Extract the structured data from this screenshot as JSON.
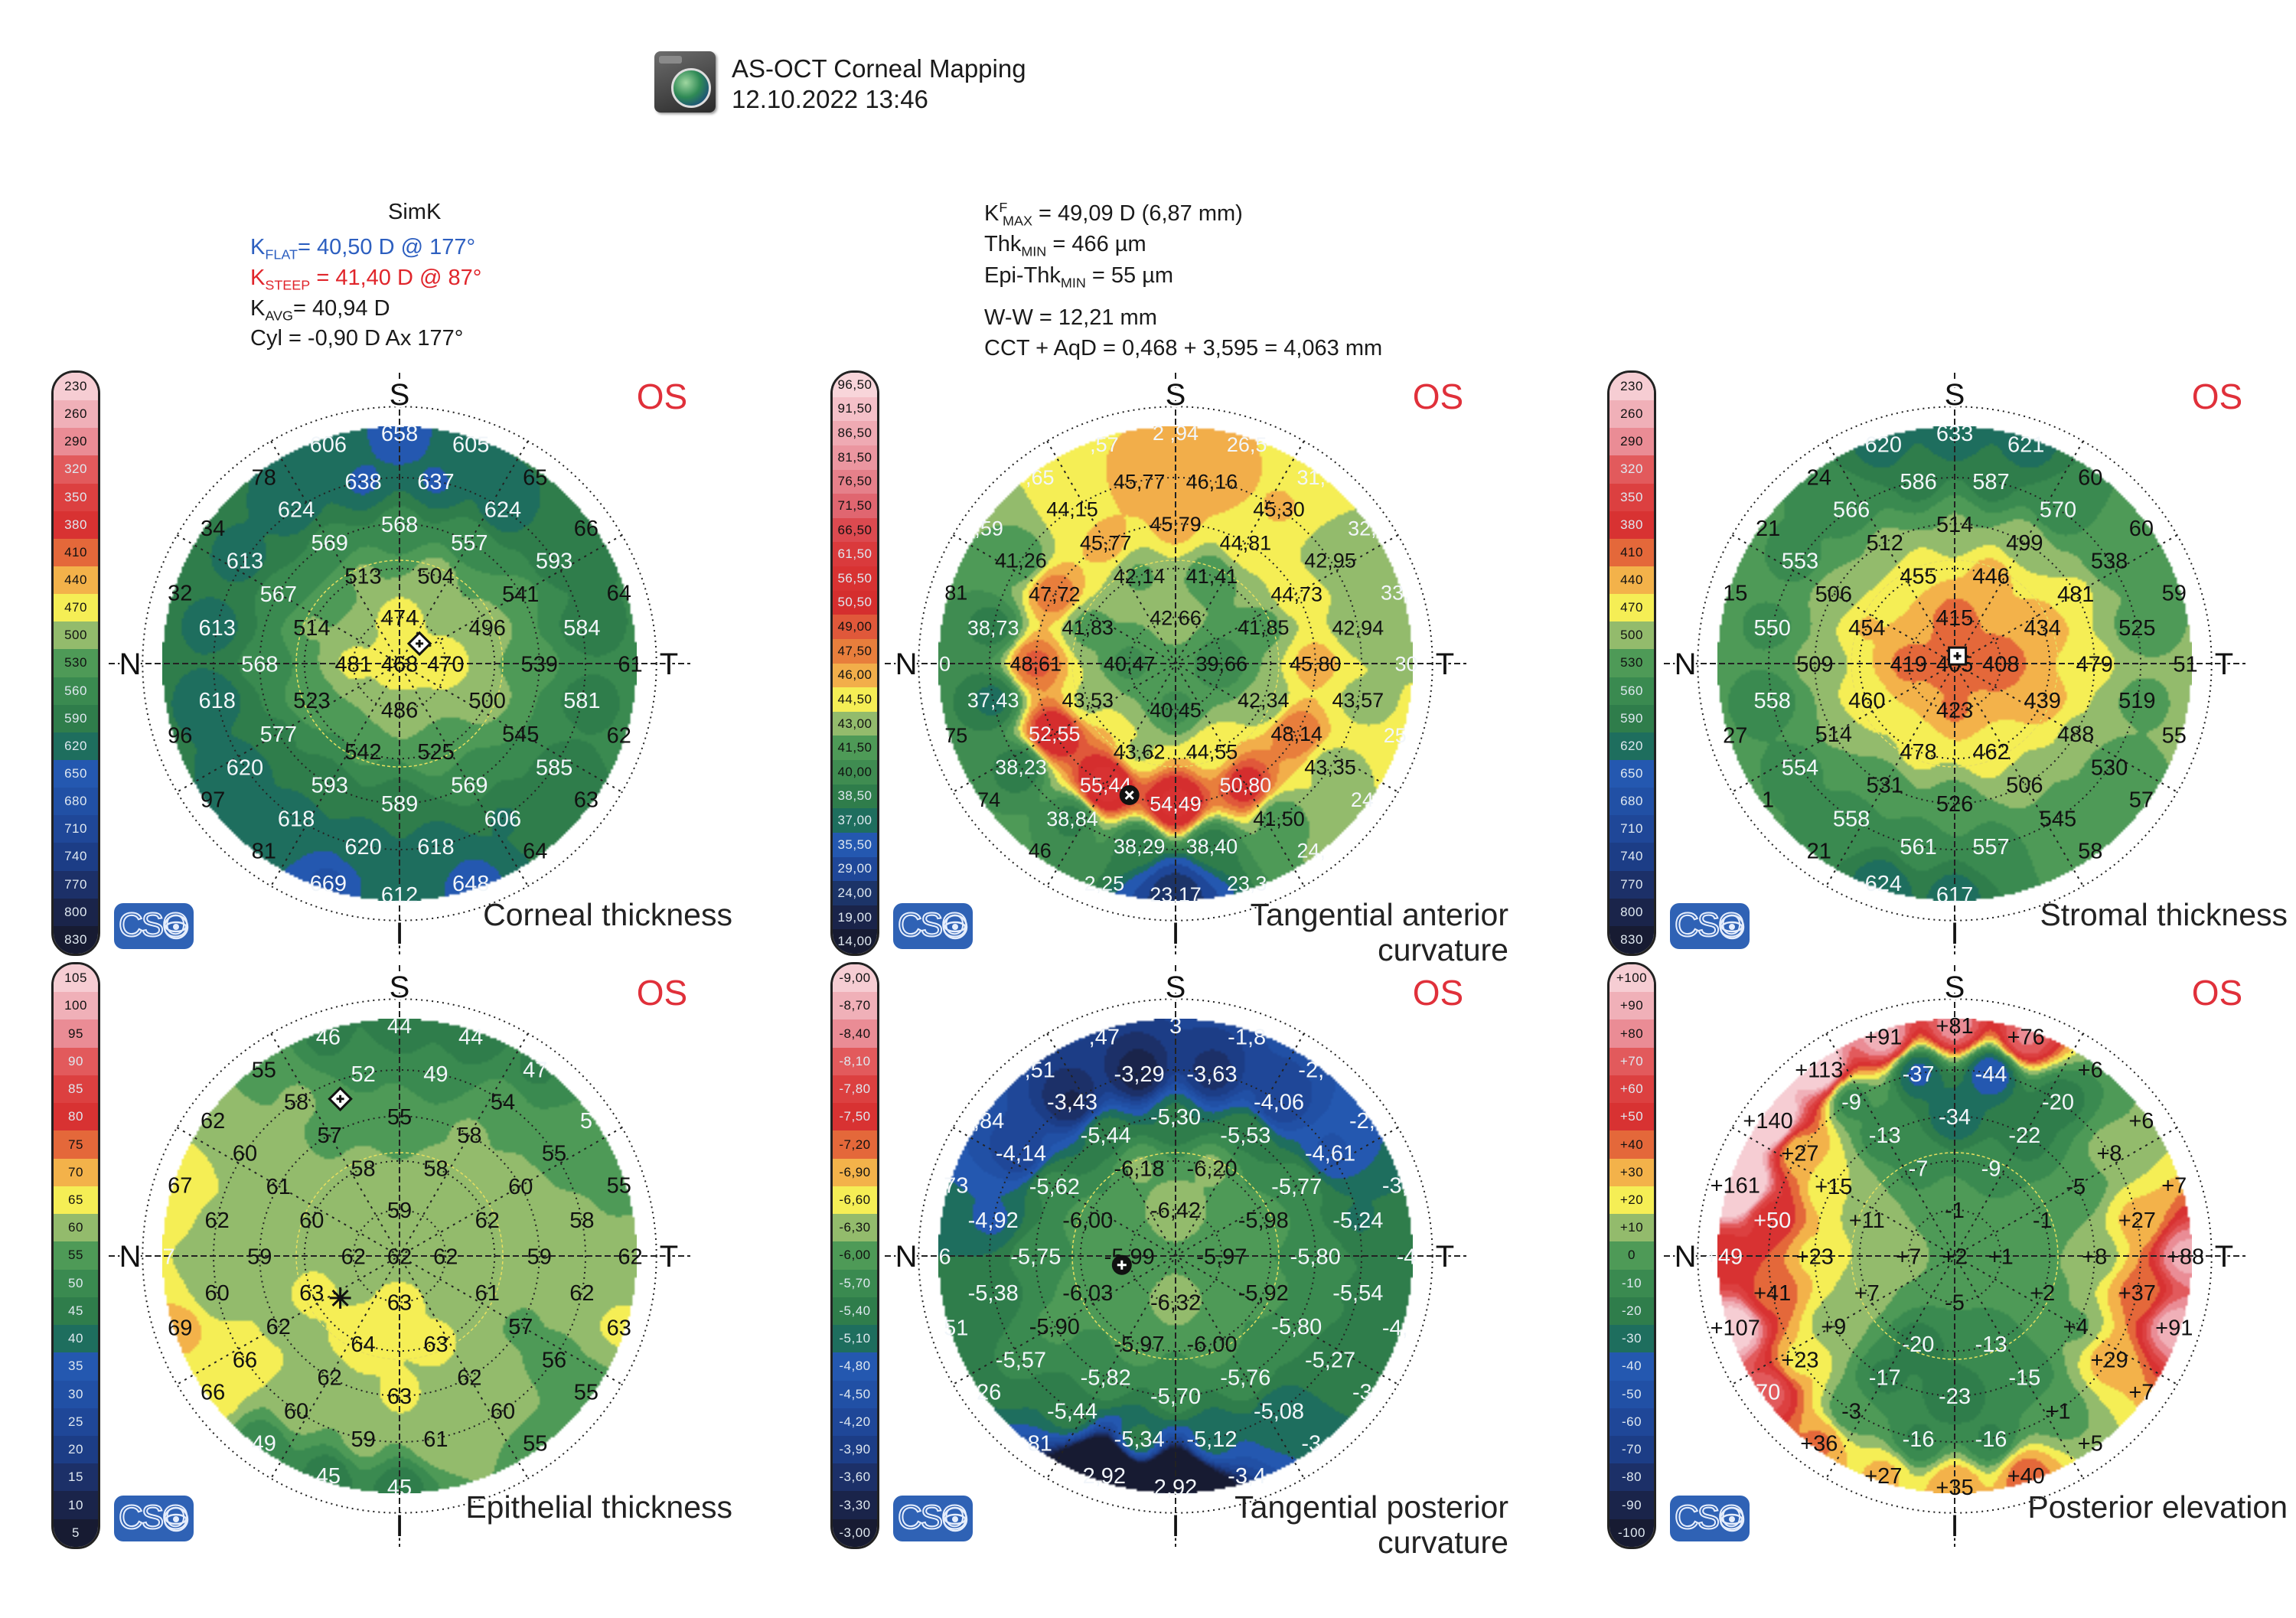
{
  "header": {
    "title": "AS-OCT Corneal Mapping",
    "datetime": "12.10.2022 13:46",
    "app_icon": "globe-monitor-icon"
  },
  "simk": {
    "title": "SimK",
    "kflat": {
      "base": "K",
      "sub": "FLAT",
      "text": "= 40,50 D @ 177°"
    },
    "ksteep": {
      "base": "K",
      "sub": "STEEP",
      "text": " = 41,40 D @ 87°"
    },
    "kavg": {
      "base": "K",
      "sub": "AVG",
      "text": "= 40,94 D"
    },
    "cyl": "Cyl = -0,90 D Ax 177°"
  },
  "summary": {
    "kmax": {
      "base": "K",
      "sup": "F",
      "sub": "MAX",
      "text": " = 49,09 D (6,87 mm)"
    },
    "thkmin": {
      "base": "Thk",
      "sub": "MIN",
      "text": " = 466 µm"
    },
    "epithkmin": {
      "base": "Epi-Thk",
      "sub": "MIN",
      "text": " = 55 µm"
    },
    "ww": "W-W = 12,21 mm",
    "cct": "CCT + AqD = 0,468 + 3,595 = 4,063 mm"
  },
  "colors": {
    "kflat": "#2d5fc0",
    "ksteep": "#e0252b",
    "eye_label": "#e0303a",
    "logo": "#2f62b5"
  },
  "logo_text": "CSO",
  "scales": {
    "thickness": {
      "labels": [
        "230",
        "260",
        "290",
        "320",
        "350",
        "380",
        "410",
        "440",
        "470",
        "500",
        "530",
        "560",
        "590",
        "620",
        "650",
        "680",
        "710",
        "740",
        "770",
        "800",
        "830"
      ]
    },
    "tangential_anterior": {
      "labels": [
        "96,50",
        "91,50",
        "86,50",
        "81,50",
        "76,50",
        "71,50",
        "66,50",
        "61,50",
        "56,50",
        "50,50",
        "49,00",
        "47,50",
        "46,00",
        "44,50",
        "43,00",
        "41,50",
        "40,00",
        "38,50",
        "37,00",
        "35,50",
        "29,00",
        "24,00",
        "19,00",
        "14,00"
      ],
      "colors": [
        "#f8d5da",
        "#f4c0c8",
        "#efaab3",
        "#eb96a0",
        "#e5808a",
        "#e06670",
        "#dc4a50",
        "#da3a3c",
        "#d83232",
        "#d52e2e",
        "#e0583a",
        "#e87e3c",
        "#f2ae4a",
        "#f5ee55",
        "#93bb6c",
        "#4e9a57",
        "#3f8c51",
        "#2f7d4b",
        "#1e6e5e",
        "#2458b0",
        "#1f4798",
        "#1c3468",
        "#1a244a",
        "#171b32"
      ],
      "light_labels": [
        7,
        8,
        9,
        17,
        18,
        19,
        20,
        21,
        22,
        23
      ]
    },
    "epithelial": {
      "labels": [
        "105",
        "100",
        "95",
        "90",
        "85",
        "80",
        "75",
        "70",
        "65",
        "60",
        "55",
        "50",
        "45",
        "40",
        "35",
        "30",
        "25",
        "20",
        "15",
        "10",
        "5"
      ]
    },
    "tangential_posterior": {
      "labels": [
        "-9,00",
        "-8,70",
        "-8,40",
        "-8,10",
        "-7,80",
        "-7,50",
        "-7,20",
        "-6,90",
        "-6,60",
        "-6,30",
        "-6,00",
        "-5,70",
        "-5,40",
        "-5,10",
        "-4,80",
        "-4,50",
        "-4,20",
        "-3,90",
        "-3,60",
        "-3,30",
        "-3,00"
      ]
    },
    "elevation": {
      "labels": [
        "+100",
        "+90",
        "+80",
        "+70",
        "+60",
        "+50",
        "+40",
        "+30",
        "+20",
        "+10",
        "0",
        "-10",
        "-20",
        "-30",
        "-40",
        "-50",
        "-60",
        "-70",
        "-80",
        "-90",
        "-100"
      ]
    },
    "standard_colors": [
      "#f6cdd3",
      "#f0b0b8",
      "#ea8c95",
      "#e25a5c",
      "#dc4040",
      "#d83232",
      "#e4683a",
      "#f3b24a",
      "#f5ee55",
      "#93bb6c",
      "#4e9a57",
      "#3a8a50",
      "#2f7d4b",
      "#1e6e5e",
      "#2458b0",
      "#2150a5",
      "#1f4798",
      "#1c3d86",
      "#1c3068",
      "#1a244a",
      "#171b32"
    ],
    "standard_light_labels": [
      3,
      4,
      5,
      11,
      12,
      13,
      14,
      15,
      16,
      17,
      18,
      19,
      20
    ]
  },
  "orientation": {
    "superior": "S",
    "inferior": "I",
    "nasal": "N",
    "temporal": "T"
  },
  "maps": [
    {
      "title": "Corneal thickness",
      "eye": "OS",
      "scale": "thickness",
      "marker": "diamond-icon",
      "values": {
        "center": "468",
        "r1": [
          "470",
          "474",
          "481",
          "486"
        ],
        "r2": [
          "496",
          "504",
          "513",
          "514",
          "523",
          "542",
          "525",
          "500"
        ],
        "r3": [
          "539",
          "541",
          "557",
          "568",
          "569",
          "567",
          "568",
          "577",
          "593",
          "589",
          "569",
          "545"
        ],
        "r4": [
          "584",
          "593",
          "624",
          "637",
          "638",
          "624",
          "613",
          "613",
          "618",
          "620",
          "618",
          "620",
          "618",
          "606",
          "585",
          "581"
        ],
        "r5": [
          "61",
          "64",
          "66",
          "65",
          "605",
          "658",
          "606",
          "78",
          "34",
          "32",
          "",
          "96",
          "97",
          "81",
          "669",
          "612",
          "648",
          "64",
          "63",
          "62"
        ]
      }
    },
    {
      "title": "Tangential anterior curvature",
      "eye": "OS",
      "scale": "tangential_anterior",
      "marker": "x-circle-icon",
      "values": {
        "center": "",
        "r1": [
          "39,66",
          "42,66",
          "40,47",
          "40,45"
        ],
        "r2": [
          "41,85",
          "41,41",
          "42,14",
          "41,83",
          "43,53",
          "43,62",
          "44,55",
          "42,34"
        ],
        "r3": [
          "45,80",
          "44,73",
          "44,81",
          "45,79",
          "45,77",
          "47,72",
          "48,61",
          "52,55",
          "55,44",
          "54,49",
          "50,80",
          "48,14"
        ],
        "r4": [
          "42,94",
          "42,95",
          "45,30",
          "46,16",
          "45,77",
          "44,15",
          "41,26",
          "38,73",
          "37,43",
          "38,23",
          "38,84",
          "38,29",
          "38,40",
          "41,50",
          "43,35",
          "43,57"
        ],
        "r5": [
          "30",
          "33,",
          "32,",
          "31,",
          "26,5",
          "2 ,94",
          ",57",
          ",65",
          ",59",
          "81",
          "0",
          "75",
          "74",
          "46",
          "2,25",
          "23,17",
          "23,3",
          "24,",
          "24",
          "25"
        ]
      }
    },
    {
      "title": "Stromal thickness",
      "eye": "OS",
      "scale": "thickness",
      "marker": "square-icon",
      "values": {
        "center": "405",
        "r1": [
          "408",
          "415",
          "419",
          "423"
        ],
        "r2": [
          "434",
          "446",
          "455",
          "454",
          "460",
          "478",
          "462",
          "439"
        ],
        "r3": [
          "479",
          "481",
          "499",
          "514",
          "512",
          "506",
          "509",
          "514",
          "531",
          "526",
          "506",
          "488"
        ],
        "r4": [
          "525",
          "538",
          "570",
          "587",
          "586",
          "566",
          "553",
          "550",
          "558",
          "554",
          "558",
          "561",
          "557",
          "545",
          "530",
          "519"
        ],
        "r5": [
          "51",
          "59",
          "60",
          "60",
          "621",
          "633",
          "620",
          "24",
          "21",
          "15",
          "",
          "27",
          "1",
          "21",
          "624",
          "617",
          "",
          "58",
          "57",
          "55"
        ]
      }
    },
    {
      "title": "Epithelial thickness",
      "eye": "OS",
      "scale": "epithelial",
      "marker": "diamond-icon",
      "marker2": "asterisk-icon",
      "values": {
        "center": "62",
        "r1": [
          "62",
          "59",
          "62",
          "63"
        ],
        "r2": [
          "62",
          "58",
          "58",
          "60",
          "63",
          "64",
          "63",
          "61"
        ],
        "r3": [
          "59",
          "60",
          "58",
          "55",
          "57",
          "61",
          "59",
          "62",
          "62",
          "63",
          "62",
          "57"
        ],
        "r4": [
          "58",
          "55",
          "54",
          "49",
          "52",
          "58",
          "60",
          "62",
          "60",
          "66",
          "60",
          "59",
          "61",
          "60",
          "56",
          "62"
        ],
        "r5": [
          "62",
          "55",
          "5",
          "47",
          "44",
          "44",
          "46",
          "55",
          "62",
          "67",
          "7",
          "69",
          "66",
          "49",
          "45",
          "45",
          "",
          "55",
          "55",
          "63"
        ]
      }
    },
    {
      "title": "Tangential posterior curvature",
      "eye": "OS",
      "scale": "tangential_posterior",
      "marker": "plus-circle-icon",
      "values": {
        "center": "",
        "r1": [
          "-5,97",
          "-6,42",
          "-5,99",
          "-6,32"
        ],
        "r2": [
          "-5,98",
          "-6,20",
          "-6,18",
          "-6,00",
          "-6,03",
          "-5,97",
          "-6,00",
          "-5,92"
        ],
        "r3": [
          "-5,80",
          "-5,77",
          "-5,53",
          "-5,30",
          "-5,44",
          "-5,62",
          "-5,75",
          "-5,90",
          "-5,82",
          "-5,70",
          "-5,76",
          "-5,80"
        ],
        "r4": [
          "-5,24",
          "-4,61",
          "-4,06",
          "-3,63",
          "-3,29",
          "-3,43",
          "-4,14",
          "-4,92",
          "-5,38",
          "-5,57",
          "-5,44",
          "-5,34",
          "-5,12",
          "-5,08",
          "-5,27",
          "-5,54"
        ],
        "r5": [
          "-4",
          "-3,",
          "-2,",
          "-2,",
          "-1,8",
          "3",
          ",47",
          ",51",
          ",84",
          "73",
          "6",
          "51",
          "26",
          "81",
          "2,92",
          "2,92",
          "-3,4",
          "-3",
          "-3",
          "-4,"
        ]
      }
    },
    {
      "title": "Posterior elevation",
      "eye": "OS",
      "scale": "elevation",
      "marker": "",
      "values": {
        "center": "+2",
        "r1": [
          "+1",
          "-1",
          "+7",
          "-5"
        ],
        "r2": [
          "-1",
          "-9",
          "-7",
          "+11",
          "+7",
          "-20",
          "-13",
          "+2"
        ],
        "r3": [
          "+8",
          "-5",
          "-22",
          "-34",
          "-13",
          "+15",
          "+23",
          "+9",
          "-17",
          "-23",
          "-15",
          "+4"
        ],
        "r4": [
          "+27",
          "+8",
          "-20",
          "-44",
          "-37",
          "-9",
          "+27",
          "+50",
          "+41",
          "+23",
          "-3",
          "-16",
          "-16",
          "+1",
          "+29",
          "+37"
        ],
        "r5": [
          "+88",
          "+7",
          "+6",
          "+6",
          "+76",
          "+81",
          "+91",
          "+113",
          "+140",
          "+161",
          "+49",
          "+107",
          "70",
          "+36",
          "+27",
          "+35",
          "+40",
          "+5",
          "+7",
          "+91"
        ]
      }
    }
  ]
}
